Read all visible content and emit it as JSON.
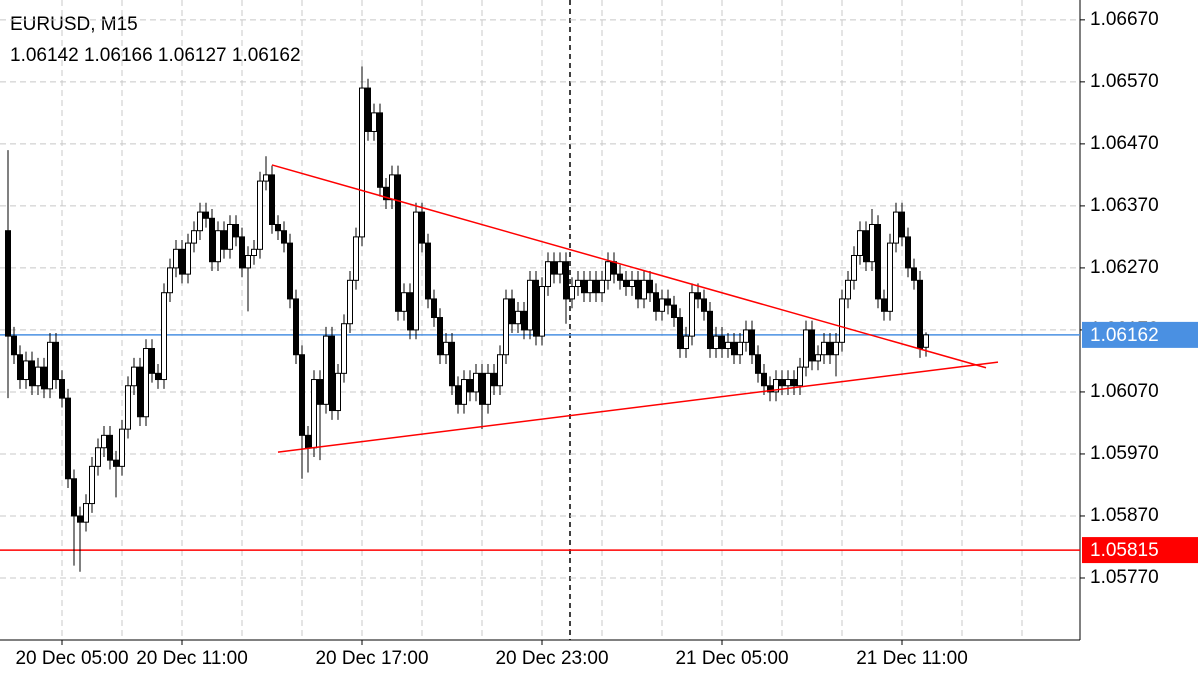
{
  "chart_data": {
    "type": "candlestick",
    "title": "EURUSD, M15",
    "subtitle": "1.06142 1.06166 1.06127 1.06162",
    "categories": [
      null,
      null,
      null,
      null,
      null,
      null,
      null,
      null,
      null,
      "20 Dec 05:00",
      null,
      null,
      null,
      null,
      null,
      null,
      null,
      null,
      null,
      null,
      null,
      null,
      null,
      null,
      null,
      null,
      null,
      null,
      null,
      "20 Dec 11:00",
      null,
      null,
      null,
      null,
      null,
      null,
      null,
      null,
      null,
      null,
      null,
      null,
      null,
      null,
      null,
      null,
      null,
      null,
      null,
      null,
      null,
      null,
      null,
      null,
      null,
      null,
      null,
      null,
      null,
      "20 Dec 17:00",
      null,
      null,
      null,
      null,
      null,
      null,
      null,
      null,
      null,
      null,
      null,
      null,
      null,
      null,
      null,
      null,
      null,
      null,
      null,
      null,
      null,
      null,
      null,
      null,
      null,
      null,
      null,
      null,
      null,
      "20 Dec 23:00",
      null,
      null,
      null,
      null,
      null,
      null,
      null,
      null,
      null,
      null,
      null,
      null,
      null,
      null,
      null,
      null,
      null,
      null,
      null,
      null,
      null,
      null,
      null,
      null,
      null,
      null,
      null,
      null,
      null,
      "21 Dec 05:00",
      null,
      null,
      null,
      null,
      null,
      null,
      null,
      null,
      null,
      null,
      null,
      null,
      null,
      null,
      null,
      null,
      null,
      null,
      null,
      null,
      null,
      null,
      null,
      null,
      null,
      null,
      null,
      null,
      null,
      "21 Dec 11:00",
      null,
      null,
      null,
      null
    ],
    "open": [
      1.0633,
      1.0616,
      1.0613,
      1.0609,
      1.0612,
      1.0608,
      1.0611,
      1.06075,
      1.0615,
      1.0609,
      1.0606,
      1.0593,
      1.0587,
      1.0586,
      1.0589,
      1.0595,
      1.0598,
      1.06,
      1.0596,
      1.0595,
      1.0601,
      1.0608,
      1.0611,
      1.0603,
      1.0614,
      1.061,
      1.0609,
      1.0623,
      1.0627,
      1.063,
      1.0626,
      1.0631,
      1.0633,
      1.0636,
      1.0635,
      1.0628,
      1.0633,
      1.063,
      1.0634,
      1.0632,
      1.0627,
      1.0629,
      1.063,
      1.0641,
      1.0642,
      1.0634,
      1.0633,
      1.0631,
      1.0622,
      1.0613,
      1.06,
      1.0598,
      1.0609,
      1.0605,
      1.0616,
      1.0604,
      1.061,
      1.0618,
      1.0625,
      1.0632,
      1.0656,
      1.0649,
      1.0652,
      1.064,
      1.0638,
      1.0642,
      1.062,
      1.0623,
      1.0617,
      1.0636,
      1.0631,
      1.0622,
      1.0619,
      1.0613,
      1.0615,
      1.0608,
      1.0605,
      1.0609,
      1.0607,
      1.061,
      1.0605,
      1.061,
      1.0608,
      1.0613,
      1.0622,
      1.0618,
      1.062,
      1.0617,
      1.0625,
      1.0616,
      1.0624,
      1.0628,
      1.0626,
      1.0628,
      1.0622,
      1.0624,
      1.0625,
      1.0623,
      1.0625,
      1.0623,
      1.0625,
      1.0628,
      1.0626,
      1.0625,
      1.0624,
      1.0625,
      1.0622,
      1.0625,
      1.0623,
      1.062,
      1.0622,
      1.0621,
      1.0619,
      1.0614,
      1.0616,
      1.0623,
      1.0622,
      1.062,
      1.0614,
      1.0616,
      1.0614,
      1.0615,
      1.0613,
      1.0615,
      1.0617,
      1.0613,
      1.061,
      1.0608,
      1.0607,
      1.0609,
      1.0608,
      1.0609,
      1.0608,
      1.0611,
      1.0617,
      1.0612,
      1.0613,
      1.0615,
      1.0613,
      1.0615,
      1.0622,
      1.0625,
      1.0629,
      1.0633,
      1.0628,
      1.0634,
      1.0622,
      1.062,
      1.0631,
      1.0636,
      1.0632,
      1.0627,
      1.0625,
      1.06142
    ],
    "high": [
      1.0646,
      1.06175,
      1.06145,
      1.06135,
      1.06135,
      1.06125,
      1.06125,
      1.06165,
      1.06165,
      1.06105,
      1.06075,
      1.05945,
      1.05885,
      1.05905,
      1.05965,
      1.05995,
      1.06015,
      1.06015,
      1.05975,
      1.06025,
      1.06095,
      1.06125,
      1.06125,
      1.06155,
      1.06155,
      1.06115,
      1.06245,
      1.06285,
      1.06315,
      1.06315,
      1.06325,
      1.06345,
      1.06375,
      1.06375,
      1.06365,
      1.06345,
      1.06345,
      1.06355,
      1.06355,
      1.06335,
      1.06305,
      1.06315,
      1.06425,
      1.0645,
      1.06435,
      1.06355,
      1.06345,
      1.06325,
      1.06235,
      1.06145,
      1.06015,
      1.06105,
      1.06105,
      1.06175,
      1.06175,
      1.06115,
      1.06195,
      1.06265,
      1.06335,
      1.06595,
      1.06575,
      1.06535,
      1.06535,
      1.06415,
      1.06435,
      1.06435,
      1.06245,
      1.06245,
      1.06375,
      1.06375,
      1.06325,
      1.06235,
      1.06205,
      1.06165,
      1.06165,
      1.06095,
      1.06105,
      1.06105,
      1.06115,
      1.06115,
      1.06115,
      1.06115,
      1.06145,
      1.06235,
      1.06235,
      1.06215,
      1.06215,
      1.06265,
      1.06265,
      1.06255,
      1.06295,
      1.06295,
      1.06295,
      1.06295,
      1.06255,
      1.06265,
      1.06265,
      1.06265,
      1.06265,
      1.06265,
      1.06295,
      1.06295,
      1.06275,
      1.06265,
      1.06265,
      1.06265,
      1.06265,
      1.06265,
      1.06245,
      1.06235,
      1.06235,
      1.06225,
      1.06205,
      1.06175,
      1.06245,
      1.06245,
      1.06235,
      1.06215,
      1.06175,
      1.06175,
      1.06165,
      1.06165,
      1.06165,
      1.06185,
      1.06185,
      1.06145,
      1.06115,
      1.06095,
      1.06105,
      1.06105,
      1.06105,
      1.06105,
      1.06125,
      1.06185,
      1.06185,
      1.06145,
      1.06165,
      1.06165,
      1.06165,
      1.06235,
      1.06265,
      1.06305,
      1.06345,
      1.06345,
      1.06365,
      1.06355,
      1.06235,
      1.06325,
      1.06375,
      1.06375,
      1.06335,
      1.06285,
      1.06265,
      1.06166
    ],
    "low": [
      1.0606,
      1.06115,
      1.06075,
      1.06075,
      1.06065,
      1.06065,
      1.0606,
      1.0606,
      1.06075,
      1.06045,
      1.05915,
      1.0579,
      1.0578,
      1.05845,
      1.05875,
      1.05935,
      1.05965,
      1.05945,
      1.059,
      1.05935,
      1.05995,
      1.06065,
      1.06015,
      1.06015,
      1.06085,
      1.06075,
      1.06075,
      1.06215,
      1.06255,
      1.06245,
      1.06245,
      1.06295,
      1.06315,
      1.06335,
      1.06265,
      1.06265,
      1.06285,
      1.06285,
      1.06305,
      1.06255,
      1.062,
      1.06275,
      1.06285,
      1.06395,
      1.06325,
      1.06315,
      1.06295,
      1.06205,
      1.06115,
      1.0593,
      1.0594,
      1.05965,
      1.0596,
      1.06035,
      1.06025,
      1.06025,
      1.06085,
      1.06165,
      1.06235,
      1.06305,
      1.06475,
      1.06475,
      1.06385,
      1.06365,
      1.06365,
      1.06185,
      1.06185,
      1.06155,
      1.06155,
      1.06295,
      1.06205,
      1.06175,
      1.06115,
      1.06115,
      1.06065,
      1.06035,
      1.06035,
      1.06055,
      1.06055,
      1.0601,
      1.06035,
      1.06065,
      1.06065,
      1.06115,
      1.06165,
      1.06165,
      1.06155,
      1.06155,
      1.06145,
      1.06145,
      1.06225,
      1.06245,
      1.06245,
      1.0618,
      1.06205,
      1.06225,
      1.06215,
      1.06215,
      1.06215,
      1.06215,
      1.06235,
      1.06245,
      1.06235,
      1.06225,
      1.06225,
      1.06205,
      1.06205,
      1.06215,
      1.06185,
      1.06185,
      1.06195,
      1.06175,
      1.06125,
      1.06125,
      1.06145,
      1.06205,
      1.06185,
      1.06125,
      1.06125,
      1.06125,
      1.06125,
      1.06115,
      1.06115,
      1.06135,
      1.06115,
      1.06085,
      1.06065,
      1.06055,
      1.06055,
      1.06065,
      1.06065,
      1.06065,
      1.06065,
      1.06095,
      1.06105,
      1.06105,
      1.06115,
      1.06115,
      1.06095,
      1.06135,
      1.06205,
      1.06235,
      1.06275,
      1.06265,
      1.06265,
      1.06205,
      1.06185,
      1.06185,
      1.06295,
      1.06305,
      1.06255,
      1.06235,
      1.06125,
      1.06127
    ],
    "close": [
      1.0616,
      1.0613,
      1.0609,
      1.0612,
      1.0608,
      1.0611,
      1.06075,
      1.0615,
      1.0609,
      1.0606,
      1.0593,
      1.0587,
      1.0586,
      1.0589,
      1.0595,
      1.0598,
      1.06,
      1.0596,
      1.0595,
      1.0601,
      1.0608,
      1.0611,
      1.0603,
      1.0614,
      1.061,
      1.0609,
      1.0623,
      1.0627,
      1.063,
      1.0626,
      1.0631,
      1.0633,
      1.0636,
      1.0635,
      1.0628,
      1.0633,
      1.063,
      1.0634,
      1.0632,
      1.0627,
      1.0629,
      1.063,
      1.0641,
      1.0642,
      1.0634,
      1.0633,
      1.0631,
      1.0622,
      1.0613,
      1.06,
      1.0598,
      1.0609,
      1.0605,
      1.0616,
      1.0604,
      1.061,
      1.0618,
      1.0625,
      1.0632,
      1.0656,
      1.0649,
      1.0652,
      1.064,
      1.0638,
      1.0642,
      1.062,
      1.0623,
      1.0617,
      1.0636,
      1.0631,
      1.0622,
      1.0619,
      1.0613,
      1.0615,
      1.0608,
      1.0605,
      1.0609,
      1.0607,
      1.061,
      1.0605,
      1.061,
      1.0608,
      1.0613,
      1.0622,
      1.0618,
      1.062,
      1.0617,
      1.0625,
      1.0616,
      1.0624,
      1.0628,
      1.0626,
      1.0628,
      1.0622,
      1.0624,
      1.0625,
      1.0623,
      1.0625,
      1.0623,
      1.0625,
      1.0628,
      1.0626,
      1.0625,
      1.0624,
      1.0625,
      1.0622,
      1.0625,
      1.0623,
      1.062,
      1.0622,
      1.0621,
      1.0619,
      1.0614,
      1.0616,
      1.0623,
      1.0622,
      1.062,
      1.0614,
      1.0616,
      1.0614,
      1.0615,
      1.0613,
      1.0615,
      1.0617,
      1.0613,
      1.061,
      1.0608,
      1.0607,
      1.0609,
      1.0608,
      1.0609,
      1.0608,
      1.0611,
      1.0617,
      1.0612,
      1.0613,
      1.0615,
      1.0613,
      1.0615,
      1.0622,
      1.0625,
      1.0629,
      1.0633,
      1.0628,
      1.0634,
      1.0622,
      1.062,
      1.0631,
      1.0636,
      1.0632,
      1.0627,
      1.0625,
      1.0614,
      1.06162
    ],
    "up_color": "#ffffff",
    "down_color": "#000000",
    "ylim": [
      1.0567,
      1.06702
    ],
    "yticks": [
      {
        "value": 1.0667,
        "label": "1.06670"
      },
      {
        "value": 1.0657,
        "label": "1.06570"
      },
      {
        "value": 1.0647,
        "label": "1.06470"
      },
      {
        "value": 1.0637,
        "label": "1.06370"
      },
      {
        "value": 1.0627,
        "label": "1.06270"
      },
      {
        "value": 1.0617,
        "label": "1.06170"
      },
      {
        "value": 1.0607,
        "label": "1.06070"
      },
      {
        "value": 1.0597,
        "label": "1.05970"
      },
      {
        "value": 1.0587,
        "label": "1.05870"
      },
      {
        "value": 1.0577,
        "label": "1.05770"
      }
    ],
    "grid": true,
    "hlines": [
      {
        "value": 1.06162,
        "label": "1.06162",
        "color": "#4a90e2"
      },
      {
        "value": 1.05815,
        "label": "1.05815",
        "color": "#ff0000"
      }
    ],
    "trendlines": [
      {
        "x0": 44,
        "y0": 1.06436,
        "x1": 163,
        "y1": 1.06109,
        "color": "#ff0000"
      },
      {
        "x0": 45,
        "y0": 1.05973,
        "x1": 165,
        "y1": 1.06118,
        "color": "#ff0000"
      }
    ]
  }
}
